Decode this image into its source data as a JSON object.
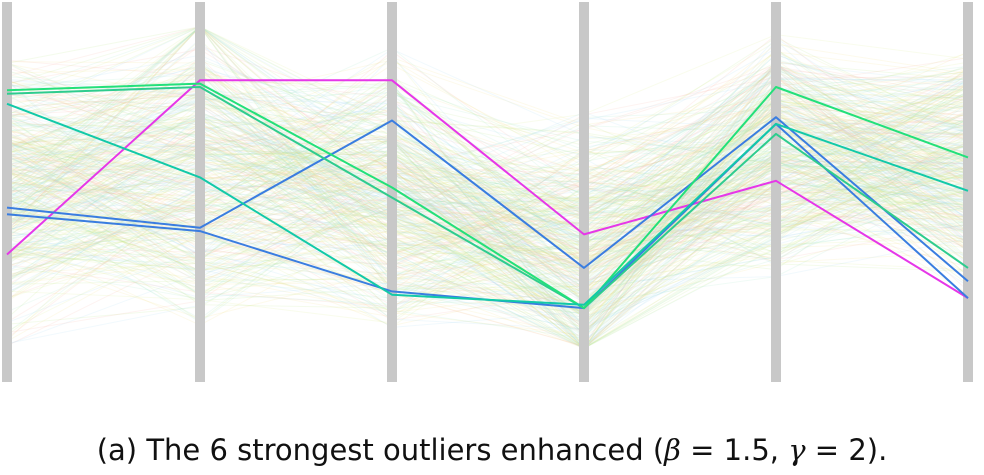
{
  "caption": {
    "prefix": "(a) The 6 strongest outliers enhanced (",
    "beta_symbol": "β",
    "beta_value": " = 1.5, ",
    "gamma_symbol": "γ",
    "gamma_value": " = 2).",
    "suffix": ""
  },
  "chart_data": {
    "type": "parallel-coordinates",
    "title": "",
    "dimensions": 6,
    "axis_color": "#c8c8c8",
    "value_range": [
      0,
      1
    ],
    "value_direction": "1 at top, 0 at bottom",
    "grid": false,
    "legend": "none",
    "background_colors": [
      "#b8e68a",
      "#d9ef8f",
      "#f5e38a",
      "#f7b4a8",
      "#a9d8f0",
      "#9fe8c8"
    ],
    "background_line_count": 420,
    "outliers": [
      {
        "color": "#e637e8",
        "values": [
          0.3,
          0.82,
          0.82,
          0.36,
          0.52,
          0.17
        ]
      },
      {
        "color": "#3a7de0",
        "values": [
          0.44,
          0.38,
          0.7,
          0.26,
          0.71,
          0.22
        ]
      },
      {
        "color": "#3a7de0",
        "values": [
          0.42,
          0.37,
          0.19,
          0.14,
          0.69,
          0.17
        ]
      },
      {
        "color": "#2ecc8e",
        "values": [
          0.78,
          0.8,
          0.47,
          0.14,
          0.66,
          0.26
        ]
      },
      {
        "color": "#23e07a",
        "values": [
          0.79,
          0.81,
          0.5,
          0.14,
          0.8,
          0.59
        ]
      },
      {
        "color": "#12c9a8",
        "values": [
          0.75,
          0.53,
          0.18,
          0.15,
          0.69,
          0.49
        ]
      }
    ]
  }
}
